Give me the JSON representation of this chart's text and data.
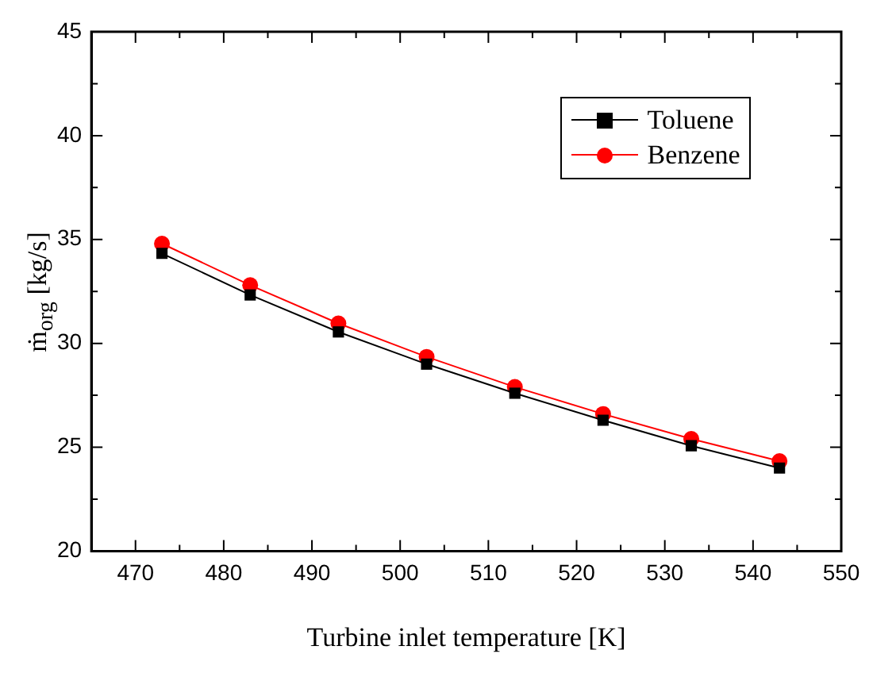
{
  "chart_data": {
    "type": "line",
    "xlabel": "Turbine inlet temperature [K]",
    "ylabel": "ṁ$_{org}$ [kg/s]",
    "x": [
      473,
      483,
      493,
      503,
      513,
      523,
      533,
      543
    ],
    "series": [
      {
        "name": "Toluene",
        "color": "#000000",
        "marker": "square",
        "values": [
          34.33,
          32.33,
          30.55,
          29.0,
          27.6,
          26.3,
          25.07,
          24.0
        ]
      },
      {
        "name": "Benzene",
        "color": "#ff0000",
        "marker": "circle",
        "values": [
          34.8,
          32.8,
          30.96,
          29.35,
          27.9,
          26.6,
          25.4,
          24.33
        ]
      }
    ],
    "xlim": [
      465,
      550
    ],
    "xticks": [
      470,
      {
        "value": 475,
        "label": null
      },
      480,
      {
        "value": 485,
        "label": null
      },
      490,
      {
        "value": 495,
        "label": null
      },
      500,
      {
        "value": 505,
        "label": null
      },
      510,
      {
        "value": 515,
        "label": null
      },
      520,
      {
        "value": 525,
        "label": null
      },
      530,
      {
        "value": 535,
        "label": null
      },
      540,
      {
        "value": 545,
        "label": null
      },
      550
    ],
    "ylim": [
      20,
      45
    ],
    "yticks": [
      20,
      {
        "value": 22.5,
        "label": null
      },
      25,
      {
        "value": 27.5,
        "label": null
      },
      30,
      {
        "value": 32.5,
        "label": null
      },
      35,
      {
        "value": 37.5,
        "label": null
      },
      40,
      {
        "value": 42.5,
        "label": null
      },
      45
    ],
    "grid": false,
    "legend": "top right",
    "line_style": "solid"
  }
}
